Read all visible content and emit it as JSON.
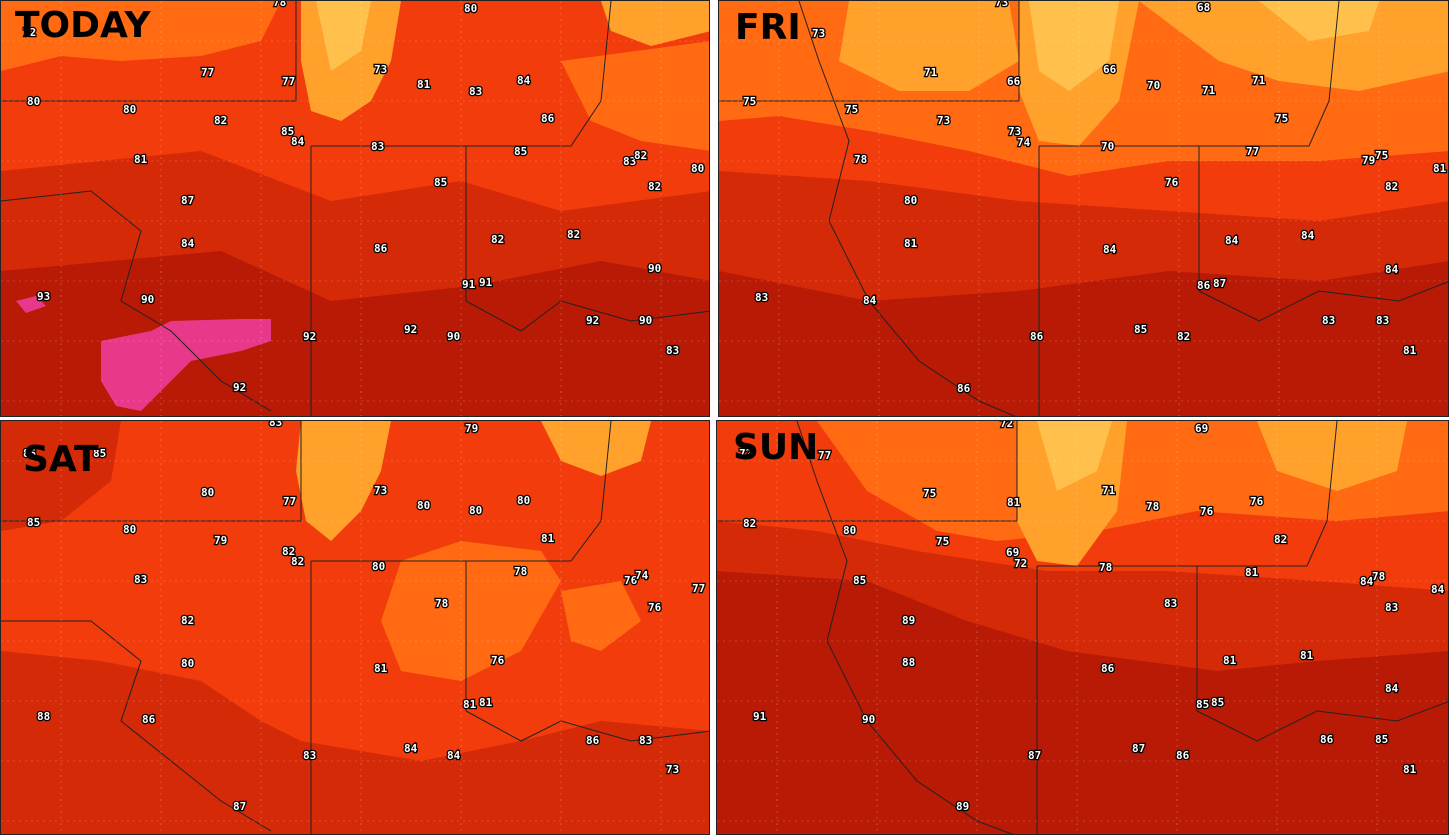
{
  "colors": {
    "very_hot": "#b81a05",
    "hot": "#d42a08",
    "warm": "#f23c0c",
    "mild": "#ff6a12",
    "lake": "#ffa12a",
    "lake_light": "#ffc14c",
    "extreme": "#e8388a",
    "boundary": "#222222"
  },
  "panels": [
    {
      "label": "TODAY",
      "temps": [
        "72",
        "78",
        "80",
        "77",
        "77",
        "73",
        "81",
        "83",
        "84",
        "80",
        "80",
        "82",
        "85",
        "84",
        "83",
        "86",
        "85",
        "83",
        "82",
        "80",
        "81",
        "85",
        "82",
        "87",
        "84",
        "86",
        "82",
        "82",
        "90",
        "93",
        "90",
        "91",
        "91",
        "92",
        "92",
        "90",
        "92",
        "90",
        "83",
        "92"
      ]
    },
    {
      "label": "FRI",
      "temps": [
        "73",
        "73",
        "68",
        "71",
        "66",
        "66",
        "70",
        "71",
        "71",
        "75",
        "75",
        "73",
        "73",
        "74",
        "70",
        "75",
        "77",
        "79",
        "75",
        "81",
        "78",
        "76",
        "82",
        "80",
        "81",
        "84",
        "84",
        "84",
        "84",
        "83",
        "84",
        "86",
        "87",
        "83",
        "86",
        "85",
        "82",
        "83",
        "81",
        "81",
        "86"
      ]
    },
    {
      "label": "SAT",
      "temps": [
        "85",
        "85",
        "83",
        "79",
        "80",
        "77",
        "73",
        "80",
        "80",
        "80",
        "85",
        "80",
        "79",
        "82",
        "82",
        "81",
        "80",
        "78",
        "76",
        "74",
        "77",
        "83",
        "82",
        "78",
        "76",
        "80",
        "81",
        "76",
        "88",
        "86",
        "81",
        "81",
        "83",
        "84",
        "84",
        "86",
        "83",
        "73",
        "87"
      ]
    },
    {
      "label": "SUN",
      "temps": [
        "72",
        "77",
        "72",
        "69",
        "75",
        "81",
        "71",
        "78",
        "76",
        "76",
        "82",
        "80",
        "75",
        "69",
        "72",
        "78",
        "82",
        "85",
        "81",
        "84",
        "78",
        "84",
        "83",
        "89",
        "88",
        "83",
        "86",
        "81",
        "81",
        "84",
        "91",
        "90",
        "87",
        "87",
        "86",
        "85",
        "85",
        "86",
        "85",
        "81",
        "89"
      ]
    }
  ]
}
